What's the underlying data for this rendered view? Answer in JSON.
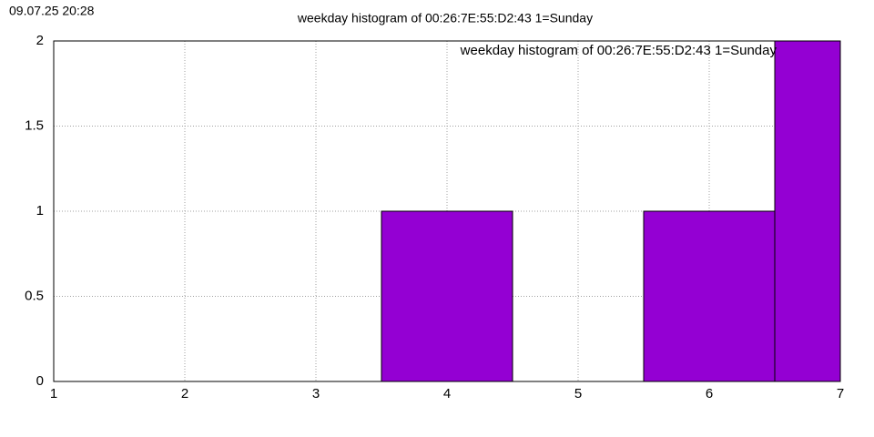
{
  "chart_data": {
    "type": "bar",
    "title": "weekday histogram of 00:26:7E:55:D2:43 1=Sunday",
    "timestamp": "09.07.25 20:28",
    "x": [
      4,
      6,
      7
    ],
    "series": [
      {
        "name": "weekday histogram of 00:26:7E:55:D2:43 1=Sunday",
        "color": "#9400d3",
        "values": [
          1,
          1,
          2
        ]
      }
    ],
    "xlim": [
      1,
      7
    ],
    "ylim": [
      0,
      2
    ],
    "xticks": [
      1,
      2,
      3,
      4,
      5,
      6,
      7
    ],
    "yticks": [
      0,
      0.5,
      1,
      1.5,
      2
    ],
    "grid": true,
    "legend": "top-right"
  }
}
